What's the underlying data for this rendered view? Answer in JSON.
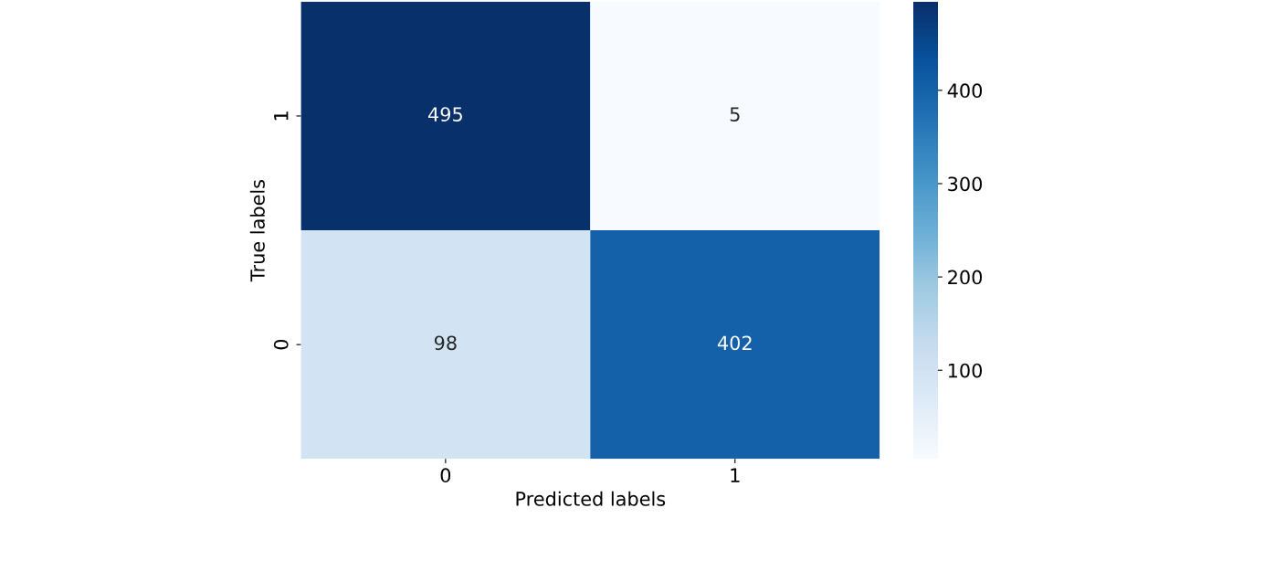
{
  "chart_data": {
    "type": "heatmap",
    "xlabel": "Predicted labels",
    "ylabel": "True labels",
    "categories": [
      "0",
      "1"
    ],
    "y_categories": [
      "1",
      "0"
    ],
    "cells": [
      [
        495,
        5
      ],
      [
        98,
        402
      ]
    ],
    "data_labels": true,
    "clim": [
      5,
      495
    ],
    "cticks": [
      100,
      200,
      300,
      400
    ]
  }
}
